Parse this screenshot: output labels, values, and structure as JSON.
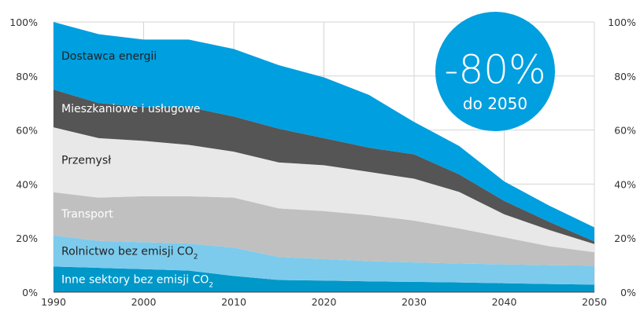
{
  "chart_data": {
    "type": "area",
    "stacked": true,
    "x": [
      1990,
      1995,
      2000,
      2005,
      2010,
      2015,
      2020,
      2025,
      2030,
      2035,
      2040,
      2045,
      2050
    ],
    "xlim": [
      1990,
      2050
    ],
    "ylim": [
      0,
      100
    ],
    "y_unit": "%",
    "x_ticks": [
      "1990",
      "2000",
      "2010",
      "2020",
      "2030",
      "2040",
      "2050"
    ],
    "y_ticks_left": [
      "0%",
      "20%",
      "40%",
      "60%",
      "80%",
      "100%"
    ],
    "y_ticks_right": [
      "0%",
      "20%",
      "40%",
      "60%",
      "80%",
      "100%"
    ],
    "grid": true,
    "series": [
      {
        "name": "Inne sektory bez emisji CO",
        "name_sub": "2",
        "color": "#0097c9",
        "label_color": "#ffffff",
        "values": [
          9.5,
          9,
          8.5,
          8,
          6,
          4.5,
          4.3,
          4,
          3.8,
          3.6,
          3.3,
          3,
          2.8
        ]
      },
      {
        "name": "Rolnictwo bez emisji CO",
        "name_sub": "2",
        "color": "#7ccbed",
        "label_color": "#222222",
        "values": [
          11.5,
          10,
          10,
          10,
          10.5,
          8.5,
          8,
          7.5,
          7.2,
          7,
          7,
          7,
          7
        ]
      },
      {
        "name": "Transport",
        "name_sub": "",
        "color": "#c0c0c0",
        "label_color": "#ffffff",
        "values": [
          16,
          16,
          17,
          17.5,
          18.5,
          18,
          17.7,
          17,
          15.5,
          13,
          10,
          7,
          5
        ]
      },
      {
        "name": "Przemysł",
        "name_sub": "",
        "color": "#e8e8e8",
        "label_color": "#222222",
        "values": [
          24,
          22,
          20.5,
          19,
          17,
          17,
          17,
          16,
          15.5,
          13.5,
          8.5,
          6,
          3
        ]
      },
      {
        "name": "Mieszkaniowe i usługowe",
        "name_sub": "",
        "color": "#555555",
        "label_color": "#ffffff",
        "values": [
          14,
          13,
          12.5,
          14,
          13,
          12.5,
          10,
          9,
          9,
          6.5,
          5,
          3,
          1
        ]
      },
      {
        "name": "Dostawca energii",
        "name_sub": "",
        "color": "#009fdf",
        "label_color": "#222222",
        "values": [
          25,
          25.5,
          25,
          25,
          25,
          23.5,
          22.5,
          19.5,
          12,
          10.5,
          7.2,
          6,
          5.2
        ]
      }
    ],
    "annotation": {
      "text": "-80%",
      "subtext": "do 2050",
      "color": "#009fdf"
    }
  }
}
